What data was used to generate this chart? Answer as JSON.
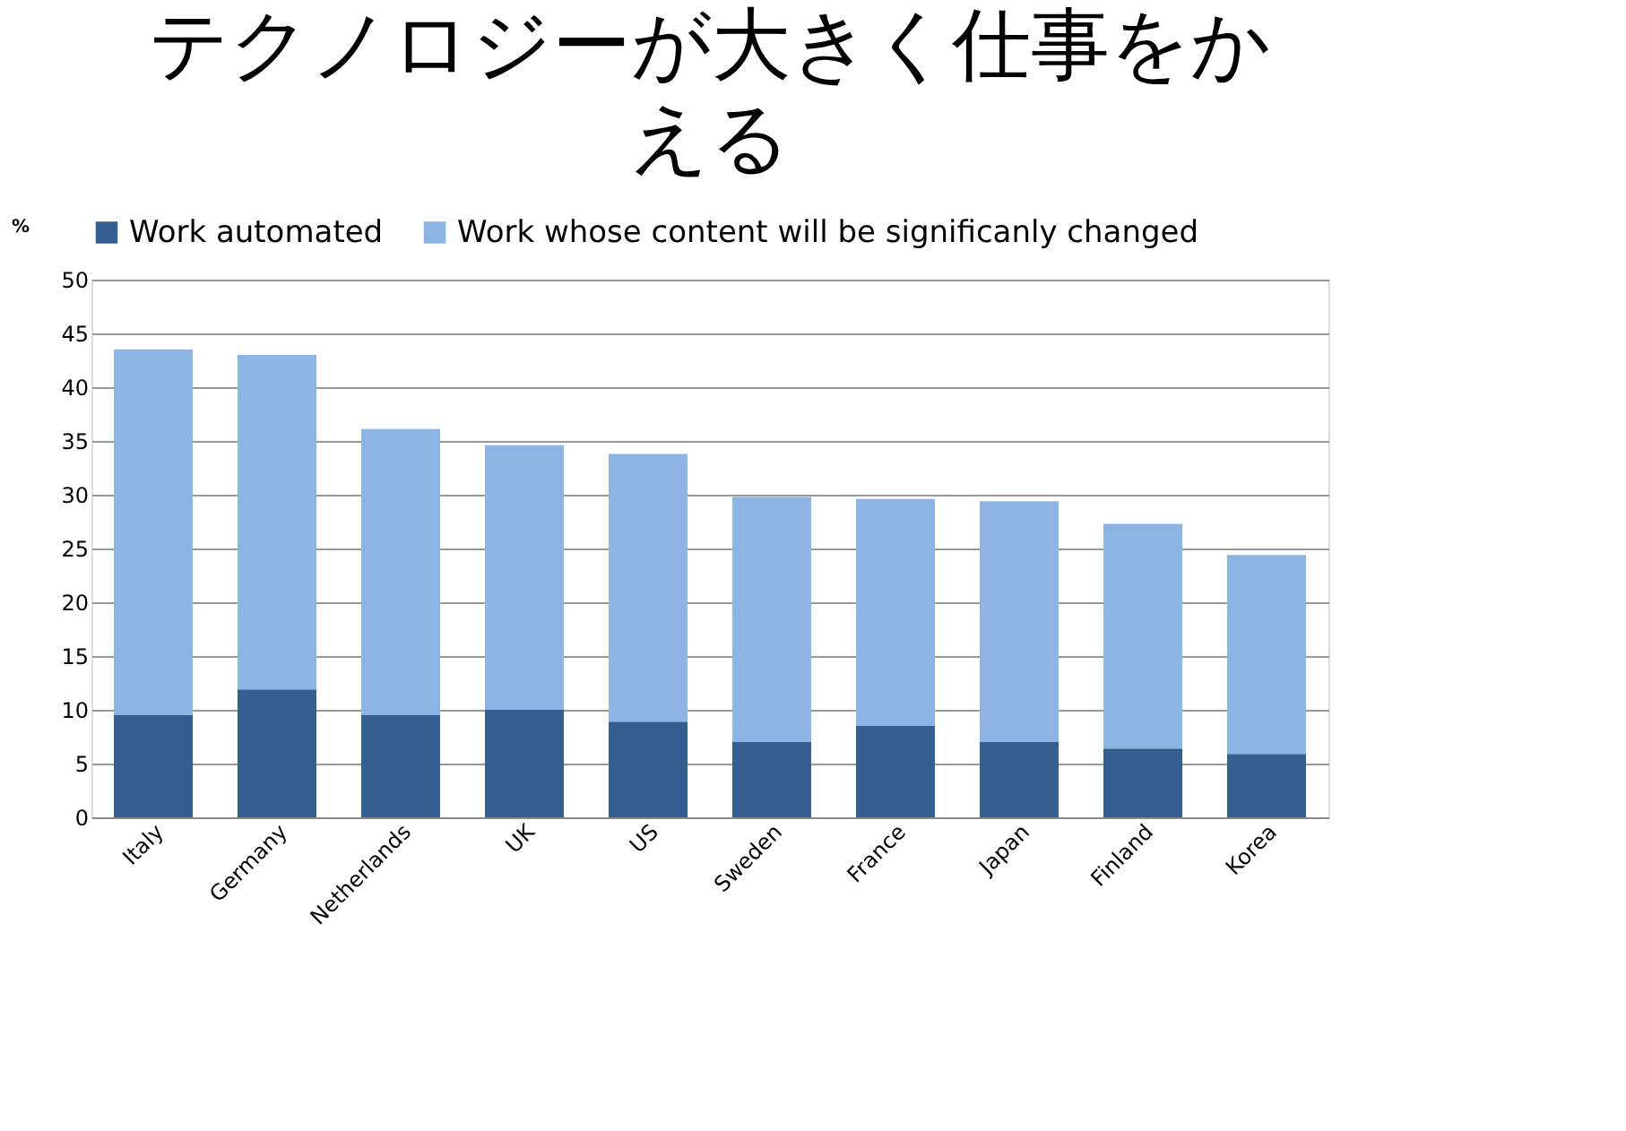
{
  "chart_data": {
    "type": "bar",
    "title": "テクノロジーが大きく仕事をかえる",
    "ylabel": "%",
    "stacked": true,
    "legend": "top",
    "grid": "y",
    "categories": [
      "Italy",
      "Germany",
      "Netherlands",
      "UK",
      "US",
      "Sweden",
      "France",
      "Japan",
      "Finland",
      "Korea"
    ],
    "series": [
      {
        "name": "Work automated",
        "color": "#355f91",
        "values": [
          9.5,
          11.9,
          9.5,
          10.0,
          8.9,
          7.0,
          8.5,
          7.0,
          6.4,
          5.9
        ]
      },
      {
        "name": "Work whose content will be significanly changed",
        "color": "#8eb4e3",
        "values": [
          34.0,
          31.1,
          26.6,
          24.6,
          24.9,
          22.8,
          21.1,
          22.4,
          20.9,
          18.5
        ]
      }
    ],
    "ylim": [
      0,
      50
    ],
    "yticks": [
      0,
      5,
      10,
      15,
      20,
      25,
      30,
      35,
      40,
      45,
      50
    ]
  }
}
